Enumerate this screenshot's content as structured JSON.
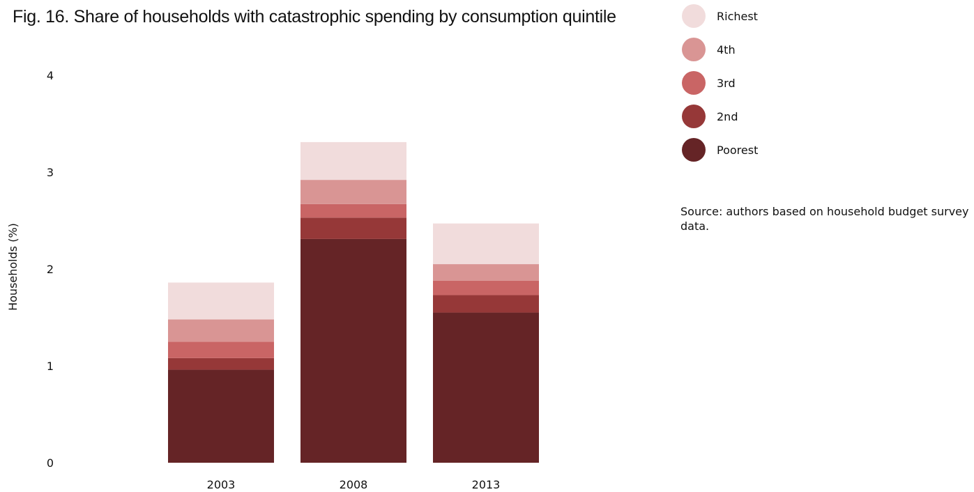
{
  "chart_data": {
    "type": "bar",
    "stacked": true,
    "title": "Fig. 16. Share of households with catastrophic spending by consumption quintile",
    "xlabel": "",
    "ylabel": "Households (%)",
    "ylim": [
      0,
      4
    ],
    "yticks": [
      "0",
      "1",
      "2",
      "3",
      "4"
    ],
    "grid": false,
    "legend_position": "right",
    "categories": [
      "2003",
      "2008",
      "2013"
    ],
    "series": [
      {
        "name": "Poorest",
        "color": "#652426",
        "values": [
          0.96,
          2.31,
          1.55
        ]
      },
      {
        "name": "2nd",
        "color": "#963838",
        "values": [
          0.12,
          0.22,
          0.18
        ]
      },
      {
        "name": "3rd",
        "color": "#c96565",
        "values": [
          0.17,
          0.14,
          0.15
        ]
      },
      {
        "name": "4th",
        "color": "#d99594",
        "values": [
          0.23,
          0.25,
          0.17
        ]
      },
      {
        "name": "Richest",
        "color": "#f1dcdc",
        "values": [
          0.38,
          0.39,
          0.42
        ]
      }
    ]
  },
  "legend": {
    "items": [
      {
        "label": "Richest",
        "color": "#f1dcdc"
      },
      {
        "label": "4th",
        "color": "#d99594"
      },
      {
        "label": "3rd",
        "color": "#c96565"
      },
      {
        "label": "2nd",
        "color": "#963838"
      },
      {
        "label": "Poorest",
        "color": "#652426"
      }
    ]
  },
  "source_note": "Source: authors based on household budget survey data."
}
